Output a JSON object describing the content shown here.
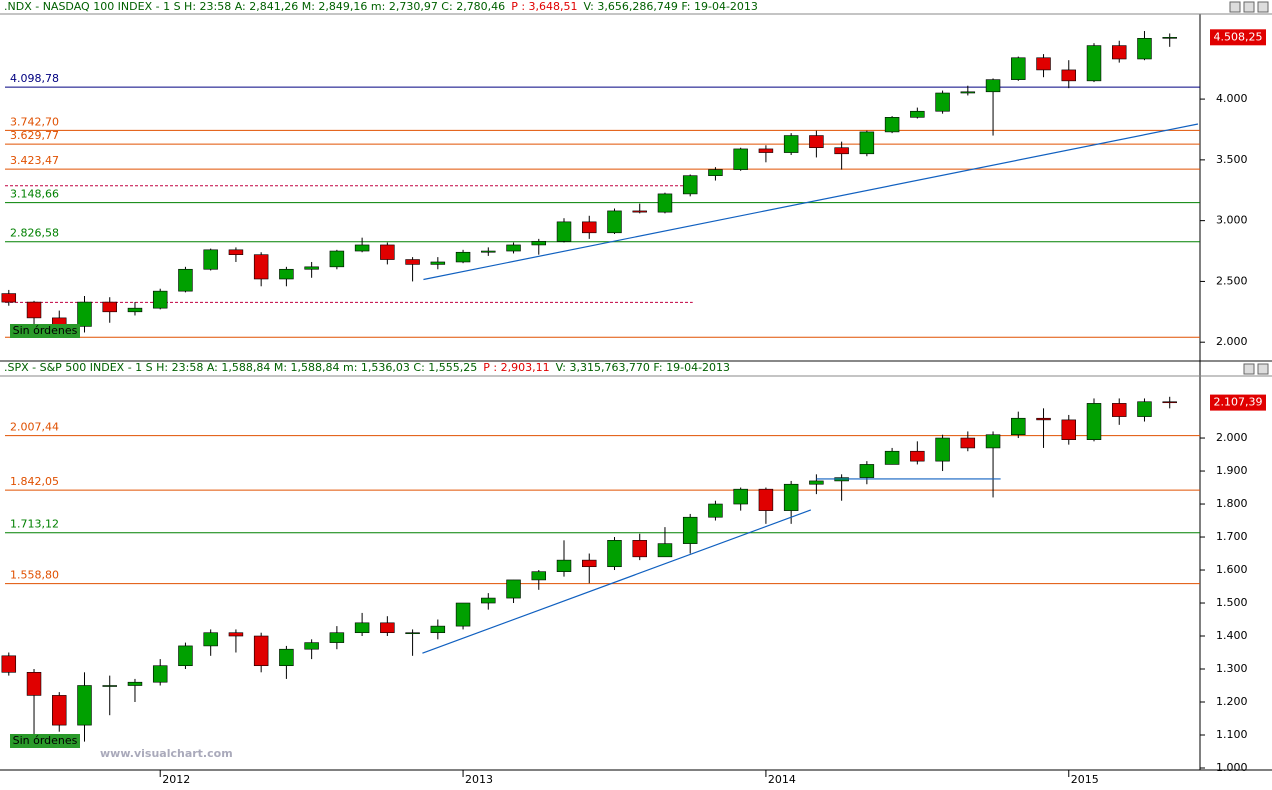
{
  "chart_data": [
    {
      "type": "candlestick",
      "header": [
        ".NDX - NASDAQ 100 INDEX -  1 S H: 23:58 A: 2,841,26 M: 2,849,16 m: 2,730,97 C: 2,780,46",
        "P : 3,648,51",
        "V: 3,656,286,749 F: 19-04-2013"
      ],
      "badge": "Sin órdenes",
      "last_label": "4.508,25",
      "xlim": [
        -0.15,
        47.2
      ],
      "ylim": [
        1870,
        4700
      ],
      "yticks": [
        {
          "value": 2000,
          "label": "2.000"
        },
        {
          "value": 2500,
          "label": "2.500"
        },
        {
          "value": 3000,
          "label": "3.000"
        },
        {
          "value": 3500,
          "label": "3.500"
        },
        {
          "value": 4000,
          "label": "4.000"
        }
      ],
      "up_color": "#00a000",
      "down_color": "#e00000",
      "open": [
        2400,
        2330,
        2200,
        2130,
        2330,
        2250,
        2280,
        2420,
        2600,
        2760,
        2720,
        2520,
        2600,
        2620,
        2750,
        2800,
        2680,
        2640,
        2660,
        2740,
        2750,
        2800,
        2830,
        2990,
        2900,
        3080,
        3070,
        3220,
        3370,
        3420,
        3590,
        3560,
        3700,
        3600,
        3550,
        3730,
        3850,
        3900,
        4050,
        4060,
        4160,
        4340,
        4240,
        4150,
        4440,
        4330,
        4500
      ],
      "high": [
        2430,
        2340,
        2260,
        2380,
        2370,
        2330,
        2440,
        2620,
        2770,
        2780,
        2740,
        2620,
        2660,
        2760,
        2860,
        2820,
        2700,
        2700,
        2760,
        2780,
        2820,
        2850,
        3020,
        3040,
        3100,
        3140,
        3230,
        3380,
        3440,
        3600,
        3620,
        3720,
        3740,
        3650,
        3740,
        3860,
        3930,
        4070,
        4110,
        4170,
        4350,
        4370,
        4320,
        4460,
        4480,
        4560,
        4540
      ],
      "low": [
        2300,
        2040,
        2100,
        2080,
        2160,
        2220,
        2270,
        2410,
        2590,
        2660,
        2460,
        2460,
        2530,
        2600,
        2740,
        2640,
        2500,
        2600,
        2650,
        2710,
        2730,
        2720,
        2820,
        2850,
        2890,
        3060,
        3060,
        3200,
        3330,
        3410,
        3480,
        3540,
        3520,
        3420,
        3530,
        3720,
        3840,
        3880,
        4030,
        3700,
        4150,
        4180,
        4090,
        4140,
        4300,
        4320,
        4430
      ],
      "close": [
        2330,
        2200,
        2130,
        2330,
        2250,
        2280,
        2420,
        2600,
        2760,
        2720,
        2520,
        2600,
        2620,
        2750,
        2800,
        2680,
        2640,
        2660,
        2740,
        2750,
        2800,
        2830,
        2990,
        2900,
        3080,
        3070,
        3220,
        3370,
        3420,
        3590,
        3560,
        3700,
        3600,
        3550,
        3730,
        3850,
        3900,
        4050,
        4060,
        4160,
        4340,
        4240,
        4150,
        4440,
        4330,
        4500,
        4508.25
      ],
      "levels": [
        {
          "value": 4098.78,
          "label": "4.098,78",
          "color": "#000080"
        },
        {
          "value": 3742.7,
          "label": "3.742,70",
          "color": "#e05000"
        },
        {
          "value": 3629.77,
          "label": "3.629,77",
          "color": "#e05000"
        },
        {
          "value": 3423.47,
          "label": "3.423,47",
          "color": "#e05000"
        },
        {
          "value": 3148.66,
          "label": "3.148,66",
          "color": "#008000"
        },
        {
          "value": 2826.58,
          "label": "2.826,58",
          "color": "#008000"
        },
        {
          "value": 2041,
          "color": "#e05000"
        }
      ],
      "dotted_levels": [
        {
          "value": 3287,
          "x_end": 27.1,
          "color": "#c00040"
        },
        {
          "value": 2328,
          "x_end": 27.1,
          "color": "#c00040"
        }
      ],
      "trendlines": [
        {
          "x": [
            16.43,
            47.12
          ],
          "y": [
            2516,
            3795
          ],
          "color": "#1060c0"
        }
      ]
    },
    {
      "type": "candlestick",
      "header": [
        ".SPX - S&P 500 INDEX -  1 S H: 23:58 A: 1,588,84 M: 1,588,84 m: 1,536,03 C: 1,555,25",
        "P : 2,903,11",
        "V: 3,315,763,770 F: 19-04-2013"
      ],
      "badge": "Sin órdenes",
      "last_label": "2.107,39",
      "watermark": "www.visualchart.com",
      "xlim": [
        -0.15,
        47.2
      ],
      "xticks": [
        {
          "value": 6,
          "label": "2012"
        },
        {
          "value": 18,
          "label": "2013"
        },
        {
          "value": 30,
          "label": "2014"
        },
        {
          "value": 42,
          "label": "2015"
        }
      ],
      "ylim": [
        1000,
        2188
      ],
      "yticks": [
        {
          "value": 1000,
          "label": "1.000"
        },
        {
          "value": 1100,
          "label": "1.100"
        },
        {
          "value": 1200,
          "label": "1.200"
        },
        {
          "value": 1300,
          "label": "1.300"
        },
        {
          "value": 1400,
          "label": "1.400"
        },
        {
          "value": 1500,
          "label": "1.500"
        },
        {
          "value": 1600,
          "label": "1.600"
        },
        {
          "value": 1700,
          "label": "1.700"
        },
        {
          "value": 1800,
          "label": "1.800"
        },
        {
          "value": 1900,
          "label": "1.900"
        },
        {
          "value": 2000,
          "label": "2.000"
        }
      ],
      "up_color": "#00a000",
      "down_color": "#e00000",
      "open": [
        1340,
        1290,
        1220,
        1130,
        1250,
        1250,
        1260,
        1310,
        1370,
        1410,
        1400,
        1310,
        1360,
        1380,
        1410,
        1440,
        1410,
        1410,
        1430,
        1500,
        1515,
        1570,
        1595,
        1630,
        1610,
        1690,
        1640,
        1680,
        1760,
        1800,
        1845,
        1780,
        1860,
        1870,
        1880,
        1920,
        1960,
        1930,
        2000,
        1970,
        2010,
        2060,
        2055,
        1995,
        2105,
        2065,
        2110
      ],
      "high": [
        1350,
        1300,
        1230,
        1290,
        1280,
        1270,
        1330,
        1380,
        1420,
        1420,
        1410,
        1370,
        1390,
        1430,
        1470,
        1460,
        1420,
        1450,
        1500,
        1530,
        1570,
        1600,
        1690,
        1650,
        1700,
        1710,
        1730,
        1770,
        1810,
        1850,
        1850,
        1870,
        1890,
        1890,
        1930,
        1970,
        1990,
        2010,
        2020,
        2020,
        2080,
        2090,
        2070,
        2120,
        2120,
        2120,
        2125
      ],
      "low": [
        1280,
        1100,
        1110,
        1080,
        1160,
        1200,
        1250,
        1300,
        1340,
        1350,
        1290,
        1270,
        1330,
        1360,
        1400,
        1400,
        1340,
        1390,
        1420,
        1480,
        1500,
        1540,
        1580,
        1560,
        1600,
        1630,
        1640,
        1650,
        1750,
        1780,
        1740,
        1740,
        1830,
        1810,
        1860,
        1920,
        1920,
        1900,
        1960,
        1820,
        2000,
        1970,
        1980,
        1990,
        2040,
        2050,
        2090
      ],
      "close": [
        1290,
        1220,
        1130,
        1250,
        1250,
        1260,
        1310,
        1370,
        1410,
        1400,
        1310,
        1360,
        1380,
        1410,
        1440,
        1410,
        1410,
        1430,
        1500,
        1515,
        1570,
        1595,
        1630,
        1610,
        1690,
        1640,
        1680,
        1760,
        1800,
        1845,
        1780,
        1860,
        1870,
        1880,
        1920,
        1960,
        1930,
        2000,
        1970,
        2010,
        2060,
        2055,
        1995,
        2105,
        2065,
        2110,
        2107.39
      ],
      "levels": [
        {
          "value": 2007.44,
          "label": "2.007,44",
          "color": "#e05000"
        },
        {
          "value": 1842.05,
          "label": "1.842,05",
          "color": "#e05000"
        },
        {
          "value": 1713.12,
          "label": "1.713,12",
          "color": "#008000"
        },
        {
          "value": 1558.8,
          "label": "1.558,80",
          "color": "#e05000"
        }
      ],
      "trendlines": [
        {
          "x": [
            16.39,
            31.78
          ],
          "y": [
            1348,
            1782
          ],
          "color": "#1060c0"
        },
        {
          "x": [
            32.0,
            39.3
          ],
          "y": [
            1876,
            1876
          ],
          "color": "#1060c0"
        }
      ]
    }
  ]
}
